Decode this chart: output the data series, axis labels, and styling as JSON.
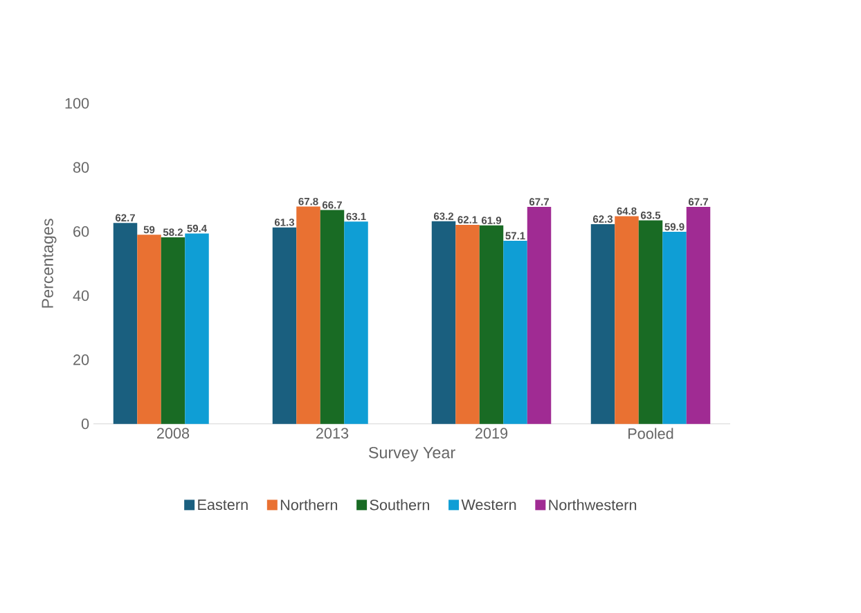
{
  "chart_data": {
    "type": "bar",
    "xlabel": "Survey Year",
    "ylabel": "Percentages",
    "categories": [
      "2008",
      "2013",
      "2019",
      "Pooled"
    ],
    "series": [
      {
        "name": "Eastern",
        "color": "#1a5f7f",
        "values": [
          62.7,
          61.3,
          63.2,
          62.3
        ],
        "value_labels": [
          "62.7",
          "61.3",
          "63.2",
          "62.3"
        ]
      },
      {
        "name": "Northern",
        "color": "#e97132",
        "values": [
          59,
          67.8,
          62.1,
          64.8
        ],
        "value_labels": [
          "59",
          "67.8",
          "62.1",
          "64.8"
        ]
      },
      {
        "name": "Southern",
        "color": "#196b24",
        "values": [
          58.2,
          66.7,
          61.9,
          63.5
        ],
        "value_labels": [
          "58.2",
          "66.7",
          "61.9",
          "63.5"
        ]
      },
      {
        "name": "Western",
        "color": "#0f9ed5",
        "values": [
          59.4,
          63.1,
          57.1,
          59.9
        ],
        "value_labels": [
          "59.4",
          "63.1",
          "57.1",
          "59.9"
        ]
      },
      {
        "name": "Northwestern",
        "color": "#a02b93",
        "values": [
          null,
          null,
          67.7,
          67.7
        ],
        "value_labels": [
          null,
          null,
          "67.7",
          "67.7"
        ]
      }
    ],
    "ylim": [
      0,
      100
    ],
    "yticks": [
      0,
      20,
      40,
      60,
      80,
      100
    ],
    "grid": false,
    "legend": "bottom"
  }
}
